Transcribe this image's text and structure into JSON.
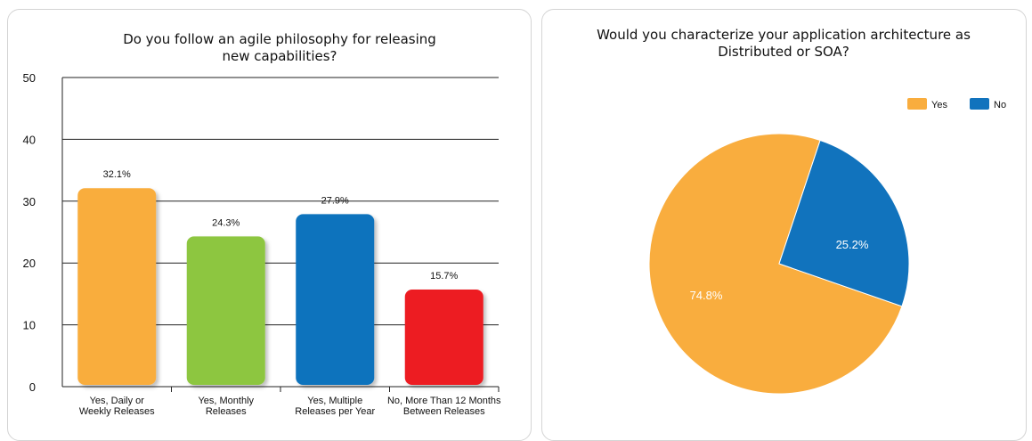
{
  "chart_data": [
    {
      "type": "bar",
      "title_lines": [
        "Do you follow an agile philosophy for releasing",
        "new capabilities?"
      ],
      "categories": [
        [
          "Yes, Daily or",
          "Weekly Releases"
        ],
        [
          "Yes, Monthly",
          "Releases"
        ],
        [
          "Yes, Multiple",
          "Releases per Year"
        ],
        [
          "No, More Than 12 Months",
          "Between Releases"
        ]
      ],
      "values": [
        32.1,
        24.3,
        27.9,
        15.7
      ],
      "data_labels": [
        "32.1%",
        "24.3%",
        "27.9%",
        "15.7%"
      ],
      "colors": [
        "#f9ad3e",
        "#8dc63f",
        "#1173bd",
        "#ed1c24"
      ],
      "ylim": [
        0,
        50
      ],
      "yticks": [
        0,
        10,
        20,
        30,
        40,
        50
      ],
      "grid": true
    },
    {
      "type": "pie",
      "title_lines": [
        "Would you characterize your application architecture as",
        "Distributed or SOA?"
      ],
      "labels": [
        "Yes",
        "No"
      ],
      "values": [
        74.8,
        25.2
      ],
      "data_labels": [
        "74.8%",
        "25.2%"
      ],
      "colors": [
        "#f9ad3e",
        "#1173bd"
      ],
      "legend_position": "top-right"
    }
  ]
}
